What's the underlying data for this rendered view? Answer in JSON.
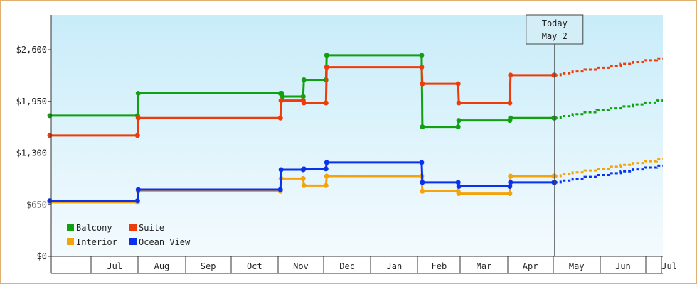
{
  "chart_data": {
    "type": "line",
    "style": "step",
    "y_ticks": [
      "$0",
      "$650",
      "$1,300",
      "$1,950",
      "$2,600"
    ],
    "ylim": [
      0,
      2800
    ],
    "x_months": [
      "Jul",
      "Aug",
      "Sep",
      "Oct",
      "Nov",
      "Dec",
      "Jan",
      "Feb",
      "Mar",
      "Apr",
      "May",
      "Jun",
      "Jul"
    ],
    "today_marker": {
      "line1": "Today",
      "line2": "May 2"
    },
    "legend_position": "bottom-left",
    "series": [
      {
        "name": "Balcony",
        "color": "#11a011",
        "points": [
          [
            "2024-06-02",
            1770
          ],
          [
            "2024-08-01",
            2050
          ],
          [
            "2024-11-03",
            2050
          ],
          [
            "2024-11-04",
            2010
          ],
          [
            "2024-11-18",
            2220
          ],
          [
            "2024-12-03",
            2530
          ],
          [
            "2025-02-04",
            1630
          ],
          [
            "2025-02-28",
            1710
          ],
          [
            "2025-04-03",
            1740
          ],
          [
            "2025-05-02",
            1740
          ]
        ],
        "forecast": [
          [
            "2025-05-02",
            1740
          ],
          [
            "2025-07-31",
            1960
          ]
        ]
      },
      {
        "name": "Suite",
        "color": "#ee3b0a",
        "points": [
          [
            "2024-06-02",
            1520
          ],
          [
            "2024-08-01",
            1740
          ],
          [
            "2024-11-03",
            1960
          ],
          [
            "2024-11-18",
            1930
          ],
          [
            "2024-12-03",
            2380
          ],
          [
            "2025-02-04",
            2170
          ],
          [
            "2025-02-28",
            1930
          ],
          [
            "2025-04-03",
            2280
          ],
          [
            "2025-05-02",
            2280
          ]
        ],
        "forecast": [
          [
            "2025-05-02",
            2280
          ],
          [
            "2025-07-31",
            2490
          ]
        ]
      },
      {
        "name": "Interior",
        "color": "#f5a30a",
        "points": [
          [
            "2024-06-02",
            680
          ],
          [
            "2024-08-01",
            820
          ],
          [
            "2024-11-03",
            980
          ],
          [
            "2024-11-18",
            890
          ],
          [
            "2024-12-03",
            1010
          ],
          [
            "2025-02-04",
            820
          ],
          [
            "2025-02-28",
            790
          ],
          [
            "2025-04-03",
            1010
          ],
          [
            "2025-05-02",
            1010
          ]
        ],
        "forecast": [
          [
            "2025-05-02",
            1010
          ],
          [
            "2025-07-31",
            1220
          ]
        ]
      },
      {
        "name": "Ocean View",
        "color": "#0a32ee",
        "points": [
          [
            "2024-06-02",
            700
          ],
          [
            "2024-08-01",
            840
          ],
          [
            "2024-11-03",
            1090
          ],
          [
            "2024-11-18",
            1100
          ],
          [
            "2024-12-03",
            1180
          ],
          [
            "2025-02-04",
            930
          ],
          [
            "2025-02-28",
            880
          ],
          [
            "2025-04-03",
            930
          ],
          [
            "2025-05-02",
            930
          ]
        ],
        "forecast": [
          [
            "2025-05-02",
            930
          ],
          [
            "2025-07-31",
            1140
          ]
        ]
      }
    ]
  }
}
